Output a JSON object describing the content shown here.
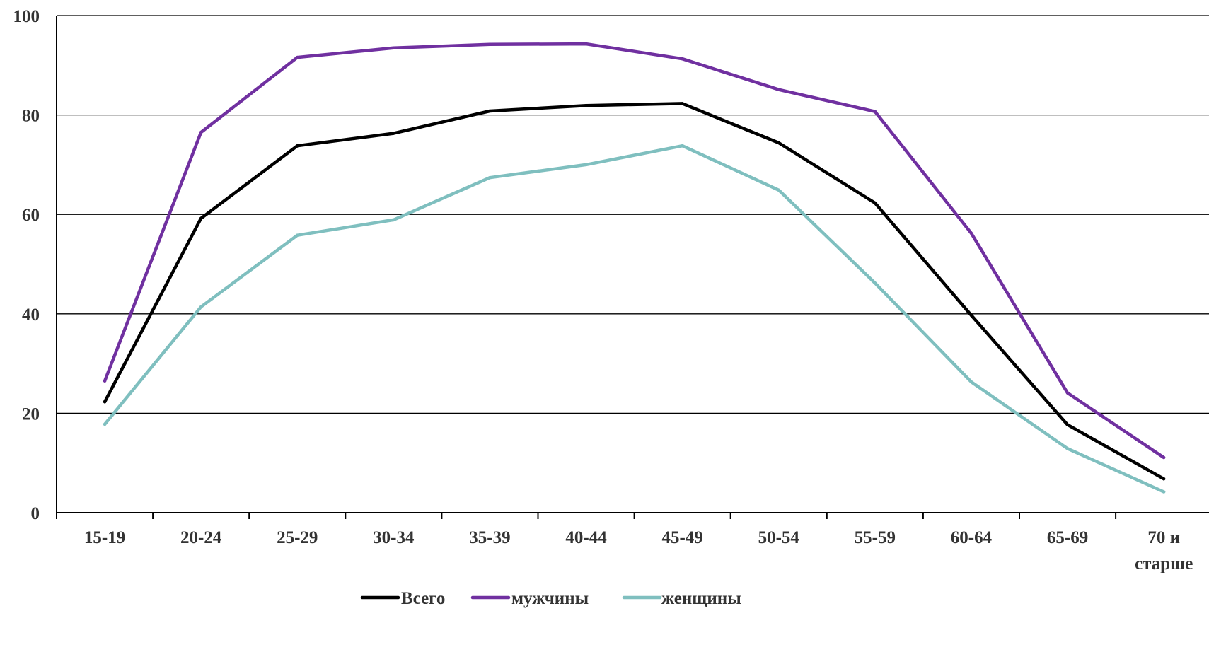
{
  "chart_data": {
    "type": "line",
    "categories": [
      "15-19",
      "20-24",
      "25-29",
      "30-34",
      "35-39",
      "40-44",
      "45-49",
      "50-54",
      "55-59",
      "60-64",
      "65-69",
      "70 и старше"
    ],
    "category_lines": [
      [
        "15-19"
      ],
      [
        "20-24"
      ],
      [
        "25-29"
      ],
      [
        "30-34"
      ],
      [
        "35-39"
      ],
      [
        "40-44"
      ],
      [
        "45-49"
      ],
      [
        "50-54"
      ],
      [
        "55-59"
      ],
      [
        "60-64"
      ],
      [
        "65-69"
      ],
      [
        "70 и",
        "старше"
      ]
    ],
    "series": [
      {
        "name": "Всего",
        "color": "#000000",
        "values": [
          22.3,
          59.2,
          73.8,
          76.3,
          80.8,
          81.9,
          82.3,
          74.4,
          62.3,
          39.7,
          17.7,
          6.8
        ]
      },
      {
        "name": "мужчины",
        "color": "#7030a0",
        "values": [
          26.5,
          76.5,
          91.6,
          93.5,
          94.2,
          94.3,
          91.3,
          85.1,
          80.7,
          56.2,
          24.1,
          11.1
        ]
      },
      {
        "name": "женщины",
        "color": "#7fbfbf",
        "values": [
          17.8,
          41.4,
          55.8,
          58.9,
          67.4,
          70.0,
          73.8,
          64.9,
          46.2,
          26.3,
          12.9,
          4.2
        ]
      }
    ],
    "y_ticks": [
      "0",
      "20",
      "40",
      "60",
      "80",
      "100"
    ],
    "ylim": [
      0,
      100
    ],
    "grid": true,
    "legend_position": "bottom-center"
  }
}
